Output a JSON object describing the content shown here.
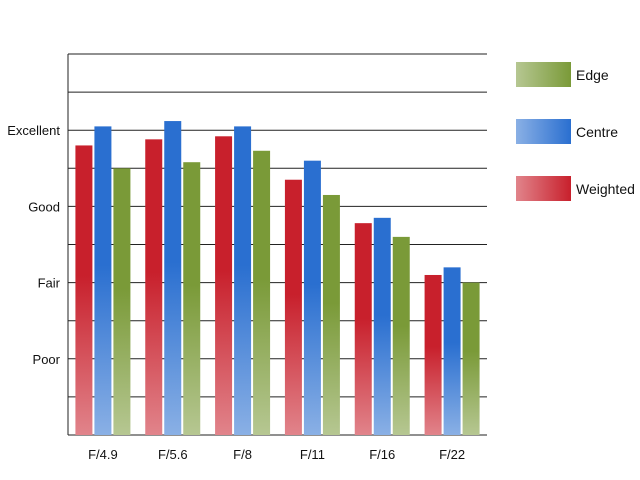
{
  "chart_data": {
    "type": "bar",
    "categories": [
      "F/4.9",
      "F/5.6",
      "F/8",
      "F/11",
      "F/16",
      "F/22"
    ],
    "series": [
      {
        "name": "Weighted",
        "values": [
          3.8,
          3.88,
          3.92,
          3.35,
          2.78,
          2.1
        ],
        "color": "#c8202c"
      },
      {
        "name": "Centre",
        "values": [
          4.05,
          4.12,
          4.05,
          3.6,
          2.85,
          2.2
        ],
        "color": "#2a6fd0"
      },
      {
        "name": "Edge",
        "values": [
          3.5,
          3.58,
          3.73,
          3.15,
          2.6,
          2.0
        ],
        "color": "#7a9a38"
      }
    ],
    "y_ticks": [
      {
        "value": 1,
        "label": "Poor"
      },
      {
        "value": 2,
        "label": "Fair"
      },
      {
        "value": 3,
        "label": "Good"
      },
      {
        "value": 4,
        "label": "Excellent"
      }
    ],
    "ylim": [
      0,
      5
    ],
    "grid": true,
    "legend": {
      "placement": "right",
      "items": [
        "Edge",
        "Centre",
        "Weighted"
      ]
    },
    "title": "",
    "xlabel": "",
    "ylabel": ""
  }
}
